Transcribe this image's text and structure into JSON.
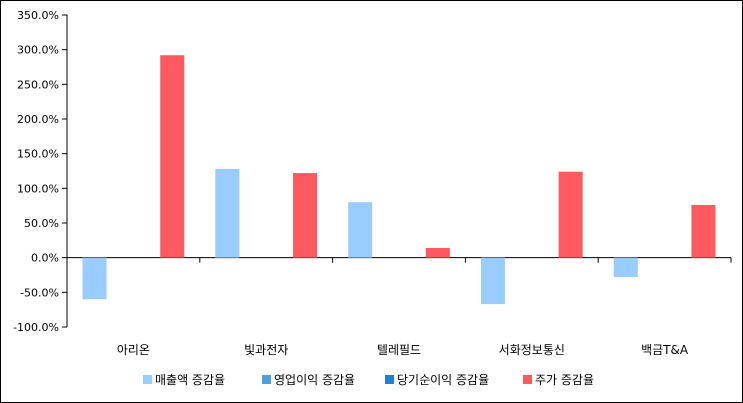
{
  "chart_data": {
    "type": "bar",
    "categories": [
      "아리온",
      "빛과전자",
      "텔레필드",
      "서화정보통신",
      "백금T&A"
    ],
    "series": [
      {
        "name": "매출액 증감율",
        "color": "#99ccff",
        "values": [
          -60.0,
          128.0,
          80.0,
          -67.0,
          -28.0
        ]
      },
      {
        "name": "영업이익 증감율",
        "color": "#4f9fdf",
        "values": [
          null,
          null,
          null,
          null,
          null
        ]
      },
      {
        "name": "당기순이익 증감율",
        "color": "#1e7fd6",
        "values": [
          null,
          null,
          null,
          null,
          null
        ]
      },
      {
        "name": "주가 증감율",
        "color": "#ff5a60",
        "values": [
          292.0,
          122.0,
          14.0,
          124.0,
          76.0
        ]
      }
    ],
    "ylim": [
      -100,
      350
    ],
    "yticks": [
      -100,
      -50,
      0,
      50,
      100,
      150,
      200,
      250,
      300,
      350
    ],
    "ytick_labels": [
      "-100.0%",
      "-50.0%",
      "0.0%",
      "50.0%",
      "100.0%",
      "150.0%",
      "200.0%",
      "250.0%",
      "300.0%",
      "350.0%"
    ],
    "title": "",
    "xlabel": "",
    "ylabel": "",
    "legend_position": "bottom",
    "grid": false
  }
}
